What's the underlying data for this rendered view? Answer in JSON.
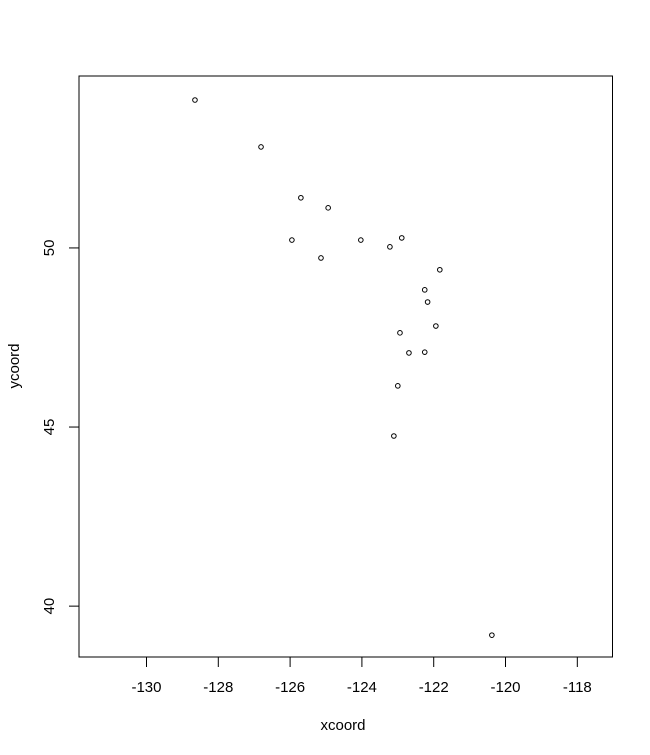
{
  "chart_data": {
    "type": "scatter",
    "title": "",
    "xlabel": "xcoord",
    "ylabel": "ycoord",
    "xlim": [
      -131.88,
      -117.02
    ],
    "ylim": [
      38.58,
      54.8
    ],
    "xticks": [
      -130,
      -128,
      -126,
      -124,
      -122,
      -120,
      -118
    ],
    "yticks": [
      40,
      45,
      50
    ],
    "xtick_labels": [
      "-130",
      "-128",
      "-126",
      "-124",
      "-122",
      "-120",
      "-118"
    ],
    "ytick_labels": [
      "40",
      "45",
      "50"
    ],
    "grid": false,
    "marker": "open-circle",
    "marker_color": "#000000",
    "points": [
      {
        "x": -128.65,
        "y": 54.13
      },
      {
        "x": -126.81,
        "y": 52.82
      },
      {
        "x": -125.7,
        "y": 51.4
      },
      {
        "x": -124.94,
        "y": 51.12
      },
      {
        "x": -125.95,
        "y": 50.22
      },
      {
        "x": -125.14,
        "y": 49.72
      },
      {
        "x": -124.03,
        "y": 50.22
      },
      {
        "x": -123.22,
        "y": 50.03
      },
      {
        "x": -122.89,
        "y": 50.28
      },
      {
        "x": -121.83,
        "y": 49.39
      },
      {
        "x": -122.25,
        "y": 48.83
      },
      {
        "x": -122.17,
        "y": 48.49
      },
      {
        "x": -121.94,
        "y": 47.82
      },
      {
        "x": -122.94,
        "y": 47.63
      },
      {
        "x": -122.69,
        "y": 47.07
      },
      {
        "x": -122.25,
        "y": 47.09
      },
      {
        "x": -123.0,
        "y": 46.15
      },
      {
        "x": -123.11,
        "y": 44.75
      },
      {
        "x": -120.38,
        "y": 39.19
      }
    ]
  }
}
